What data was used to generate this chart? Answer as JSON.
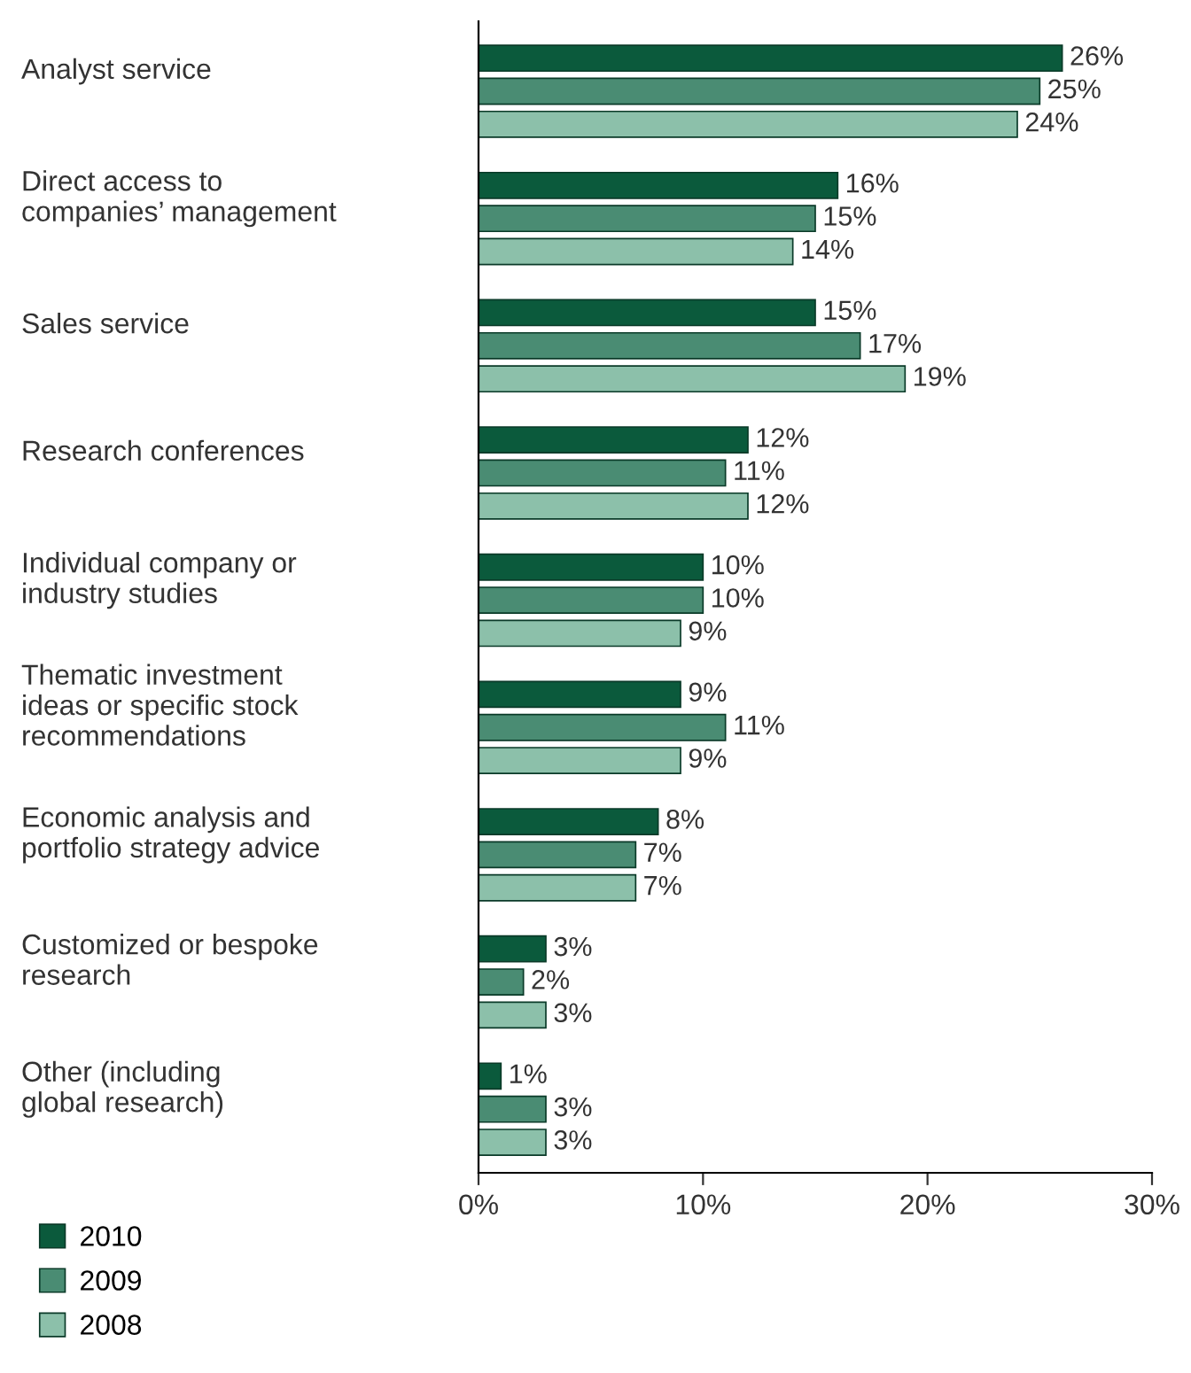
{
  "chart_data": {
    "type": "bar",
    "orientation": "horizontal",
    "categories": [
      "Analyst service",
      "Direct access to\ncompanies’ management",
      "Sales service",
      "Research conferences",
      "Individual company or\nindustry studies",
      "Thematic investment\nideas or specific stock\nrecommendations",
      "Economic analysis and\nportfolio strategy advice",
      "Customized or bespoke\nresearch",
      "Other (including\nglobal research)"
    ],
    "series": [
      {
        "name": "2010",
        "color": "#0b5a3c",
        "values": [
          26,
          16,
          15,
          12,
          10,
          9,
          8,
          3,
          1
        ],
        "value_labels": [
          "26%",
          "16%",
          "15%",
          "12%",
          "10%",
          "9%",
          "8%",
          "3%",
          "1%"
        ]
      },
      {
        "name": "2009",
        "color": "#4a8c73",
        "values": [
          25,
          15,
          17,
          11,
          10,
          11,
          7,
          2,
          3
        ],
        "value_labels": [
          "25%",
          "15%",
          "17%",
          "11%",
          "10%",
          "11%",
          "7%",
          "2%",
          "3%"
        ]
      },
      {
        "name": "2008",
        "color": "#8cc0aa",
        "values": [
          24,
          14,
          19,
          12,
          9,
          9,
          7,
          3,
          3
        ],
        "value_labels": [
          "24%",
          "14%",
          "19%",
          "12%",
          "9%",
          "9%",
          "7%",
          "3%",
          "3%"
        ]
      }
    ],
    "xlim": [
      0,
      30
    ],
    "xticks": [
      {
        "value": 0,
        "label": "0%"
      },
      {
        "value": 10,
        "label": "10%"
      },
      {
        "value": 20,
        "label": "20%"
      },
      {
        "value": 30,
        "label": "30%"
      }
    ],
    "grid": false,
    "legend": "bottom left"
  }
}
